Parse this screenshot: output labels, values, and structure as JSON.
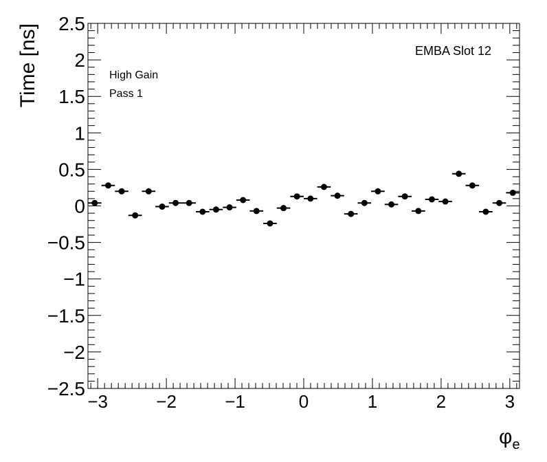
{
  "chart_data": {
    "type": "scatter",
    "xlabel": "φ",
    "xlabel_subscript": "e",
    "ylabel": "Time [ns]",
    "xlim": [
      -3.14159,
      3.14159
    ],
    "ylim": [
      -2.5,
      2.5
    ],
    "x_ticks": [
      -3,
      -2,
      -1,
      0,
      1,
      2,
      3
    ],
    "x_tick_labels": [
      "−3",
      "−2",
      "−1",
      "0",
      "1",
      "2",
      "3"
    ],
    "y_ticks": [
      -2.5,
      -2,
      -1.5,
      -1,
      -0.5,
      0,
      0.5,
      1,
      1.5,
      2,
      2.5
    ],
    "y_tick_labels": [
      "−2.5",
      "−2",
      "−1.5",
      "−1",
      "−0.5",
      "0",
      "0.5",
      "1",
      "1.5",
      "2",
      "2.5"
    ],
    "bins": 32,
    "annotations": {
      "slot": "EMBA Slot 12",
      "gain": "High Gain",
      "pass": "Pass 1"
    },
    "grid": false,
    "series": [
      {
        "values": [
          0.04,
          0.28,
          0.2,
          -0.13,
          0.2,
          -0.01,
          0.04,
          0.04,
          -0.08,
          -0.05,
          -0.02,
          0.08,
          -0.07,
          -0.24,
          -0.03,
          0.13,
          0.1,
          0.26,
          0.14,
          -0.11,
          0.04,
          0.2,
          0.02,
          0.13,
          -0.07,
          0.09,
          0.06,
          0.44,
          0.28,
          -0.08,
          0.04,
          0.18
        ]
      }
    ]
  }
}
